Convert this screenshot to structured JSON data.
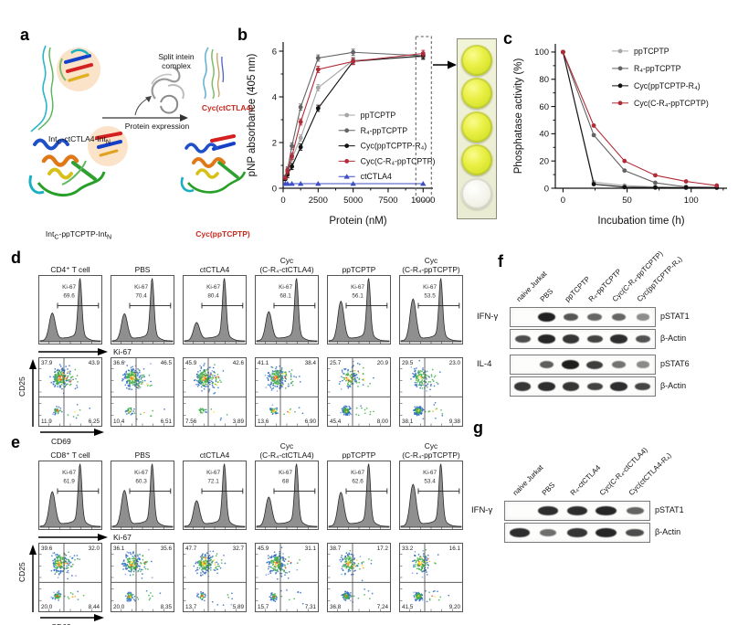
{
  "figure": {
    "panels": {
      "a": {
        "label": "a",
        "construct_top_label": "Int~C~-ctCTLA4-Int~N~",
        "construct_bottom_label": "Int~C~-ppTCPTP-Int~N~",
        "complex_label": "Split intein\ncomplex",
        "arrow_label": "Protein expression",
        "product_top_label": "Cyc(ctCTLA4)",
        "product_bottom_label": "Cyc(ppTCPTP)",
        "highlight_color": "#fae3c8",
        "product_color": "#c9281e"
      },
      "b": {
        "label": "b",
        "wells": {
          "count": 5,
          "appearance": [
            "yellow",
            "yellow",
            "yellow",
            "yellow",
            "clear"
          ]
        }
      },
      "c": {
        "label": "c"
      },
      "d": {
        "label": "d",
        "hist_axis": "Ki-67",
        "dot_y_axis": "CD25",
        "dot_x_axis": "CD69",
        "gate_label": "Ki-67",
        "columns": [
          {
            "title_line1": "",
            "title_line2": "CD4⁺ T cell",
            "ki67": "69.6",
            "quadrants": {
              "upper_left": "37.9",
              "upper_right": "43.9",
              "lower_left": "11.9",
              "lower_right": "6.25"
            }
          },
          {
            "title_line1": "",
            "title_line2": "PBS",
            "ki67": "70.4",
            "quadrants": {
              "upper_left": "36.6",
              "upper_right": "46.5",
              "lower_left": "10.4",
              "lower_right": "6.51"
            }
          },
          {
            "title_line1": "",
            "title_line2": "ctCTLA4",
            "ki67": "80.4",
            "quadrants": {
              "upper_left": "45.9",
              "upper_right": "42.6",
              "lower_left": "7.56",
              "lower_right": "3.89"
            }
          },
          {
            "title_line1": "Cyc",
            "title_line2": "(C-R₄-ctCTLA4)",
            "ki67": "68.1",
            "quadrants": {
              "upper_left": "41.1",
              "upper_right": "38.4",
              "lower_left": "13.6",
              "lower_right": "6.90"
            }
          },
          {
            "title_line1": "",
            "title_line2": "ppTCPTP",
            "ki67": "56.1",
            "quadrants": {
              "upper_left": "25.7",
              "upper_right": "20.9",
              "lower_left": "45.4",
              "lower_right": "8.00"
            }
          },
          {
            "title_line1": "Cyc",
            "title_line2": "(C-R₄-ppTCPTP)",
            "ki67": "53.5",
            "quadrants": {
              "upper_left": "29.5",
              "upper_right": "23.0",
              "lower_left": "38.1",
              "lower_right": "9.38"
            }
          }
        ]
      },
      "e": {
        "label": "e",
        "hist_axis": "Ki-67",
        "dot_y_axis": "CD25",
        "dot_x_axis": "CD69",
        "gate_label": "Ki-67",
        "columns": [
          {
            "title_line1": "",
            "title_line2": "CD8⁺ T cell",
            "ki67": "61.9",
            "quadrants": {
              "upper_left": "39.6",
              "upper_right": "32.0",
              "lower_left": "20.0",
              "lower_right": "8.44"
            }
          },
          {
            "title_line1": "",
            "title_line2": "PBS",
            "ki67": "60.3",
            "quadrants": {
              "upper_left": "36.1",
              "upper_right": "35.6",
              "lower_left": "20.0",
              "lower_right": "8.35"
            }
          },
          {
            "title_line1": "",
            "title_line2": "ctCTLA4",
            "ki67": "72.1",
            "quadrants": {
              "upper_left": "47.7",
              "upper_right": "32.7",
              "lower_left": "13.7",
              "lower_right": "5.89"
            }
          },
          {
            "title_line1": "Cyc",
            "title_line2": "(C-R₄-ctCTLA4)",
            "ki67": "68.0",
            "quadrants": {
              "upper_left": "45.9",
              "upper_right": "31.1",
              "lower_left": "15.7",
              "lower_right": "7.31"
            }
          },
          {
            "title_line1": "",
            "title_line2": "ppTCPTP",
            "ki67": "62.6",
            "quadrants": {
              "upper_left": "38.7",
              "upper_right": "17.2",
              "lower_left": "36.8",
              "lower_right": "7.24"
            }
          },
          {
            "title_line1": "Cyc",
            "title_line2": "(C-R₄-ppTCPTP)",
            "ki67": "53.4",
            "quadrants": {
              "upper_left": "33.2",
              "upper_right": "16.1",
              "lower_left": "41.5",
              "lower_right": "9.20"
            }
          }
        ]
      },
      "f": {
        "label": "f",
        "lanes": [
          "naive Jurkat",
          "PBS",
          "ppTCPTP",
          "R₄-ppTCPTP",
          "Cyc(C-R₄-ppTCPTP)",
          "Cyc(ppTCPTP-R₄)"
        ],
        "groups": [
          {
            "group_label": "IFN-γ",
            "rows": [
              {
                "name": "pSTAT1",
                "bands": [
                  0,
                  0.92,
                  0.6,
                  0.5,
                  0.5,
                  0.26
                ]
              },
              {
                "name": "β-Actin",
                "bands": [
                  0.65,
                  0.9,
                  0.8,
                  0.72,
                  0.85,
                  0.62
                ]
              }
            ]
          },
          {
            "group_label": "IL-4",
            "rows": [
              {
                "name": "pSTAT6",
                "bands": [
                  0,
                  0.55,
                  0.95,
                  0.75,
                  0.42,
                  0.28
                ]
              },
              {
                "name": "β-Actin",
                "bands": [
                  0.8,
                  0.85,
                  0.8,
                  0.72,
                  0.85,
                  0.7
                ]
              }
            ]
          }
        ]
      },
      "g": {
        "label": "g",
        "lanes": [
          "naive Jurkat",
          "PBS",
          "R₄-ctCTLA4",
          "Cyc(C-R₄-ctCTLA4)",
          "Cyc(ctCTLA4-R₄)"
        ],
        "groups": [
          {
            "group_label": "IFN-γ",
            "rows": [
              {
                "name": "pSTAT1",
                "bands": [
                  0,
                  0.85,
                  0.85,
                  0.9,
                  0.52
                ]
              },
              {
                "name": "β-Actin",
                "bands": [
                  0.85,
                  0.45,
                  0.8,
                  0.9,
                  0.65
                ]
              }
            ]
          }
        ]
      }
    }
  },
  "chart_data": [
    {
      "panel": "b",
      "type": "line",
      "title": "",
      "xlabel": "Protein (nM)",
      "ylabel": "pNP absorbance (405 nm)",
      "xlim": [
        0,
        10700
      ],
      "ylim": [
        0,
        6.4
      ],
      "xticks": [
        0,
        2500,
        5000,
        7500,
        10000
      ],
      "yticks": [
        0,
        2,
        4,
        6
      ],
      "xminor": [
        1250,
        3750,
        6250,
        8750
      ],
      "yminor": [
        1,
        3,
        5
      ],
      "grid": false,
      "legend_position": "inside middle-right",
      "x": [
        156,
        313,
        625,
        1250,
        2500,
        5000,
        10000
      ],
      "series": [
        {
          "name": "ppTCPTP",
          "color": "#a6a6a6",
          "marker": "circle",
          "values": [
            0.45,
            0.7,
            1.3,
            2.2,
            4.4,
            5.6,
            5.75
          ]
        },
        {
          "name": "R₄-ppTCPTP",
          "color": "#636363",
          "marker": "circle",
          "values": [
            0.5,
            0.8,
            1.85,
            3.55,
            5.7,
            5.95,
            5.8
          ]
        },
        {
          "name": "Cyc(ppTCPTP-R₄)",
          "color": "#111111",
          "marker": "circle",
          "values": [
            0.4,
            0.6,
            0.95,
            1.8,
            3.5,
            5.55,
            5.8
          ]
        },
        {
          "name": "Cyc(C-R₄-ppTCPTP)",
          "color": "#b02a37",
          "marker": "circle",
          "values": [
            0.45,
            0.75,
            1.4,
            2.9,
            5.2,
            5.55,
            5.9
          ]
        },
        {
          "name": "ctCTLA4",
          "color": "#3d4fc4",
          "marker": "triangle",
          "values": [
            0.2,
            0.2,
            0.2,
            0.2,
            0.2,
            0.2,
            0.2
          ]
        }
      ],
      "highlight_x": 10000
    },
    {
      "panel": "c",
      "type": "line",
      "title": "",
      "xlabel": "Incubation time (h)",
      "ylabel": "Phosphatase activity (%)",
      "xlim": [
        -6,
        128
      ],
      "ylim": [
        0,
        106
      ],
      "xticks": [
        0,
        50,
        100
      ],
      "yticks": [
        0,
        20,
        40,
        60,
        80,
        100
      ],
      "xminor": [
        25,
        75,
        125
      ],
      "yminor": [
        10,
        30,
        50,
        70,
        90
      ],
      "grid": false,
      "legend_position": "inside top-right",
      "x": [
        0,
        24,
        48,
        72,
        96,
        120
      ],
      "series": [
        {
          "name": "ppTCPTP",
          "color": "#a6a6a6",
          "marker": "circle",
          "values": [
            100,
            4.5,
            2,
            1,
            0.6,
            0.5
          ]
        },
        {
          "name": "R₄-ppTCPTP",
          "color": "#636363",
          "marker": "circle",
          "values": [
            100,
            39,
            13,
            4,
            1,
            0.6
          ]
        },
        {
          "name": "Cyc(ppTCPTP-R₄)",
          "color": "#111111",
          "marker": "circle",
          "values": [
            100,
            3,
            0.8,
            0.5,
            0.4,
            0.4
          ]
        },
        {
          "name": "Cyc(C-R₄-ppTCPTP)",
          "color": "#b02a37",
          "marker": "circle",
          "values": [
            100,
            46,
            20,
            9.5,
            5,
            2
          ]
        }
      ]
    }
  ]
}
